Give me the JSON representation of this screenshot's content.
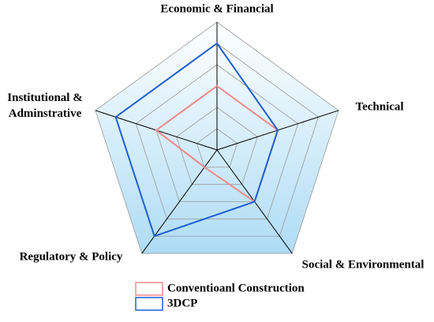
{
  "chart_data": {
    "type": "radar",
    "categories": [
      "Economic & Financial",
      "Technical",
      "Social & Environmental",
      "Regulatory & Policy",
      "Institutional & Adminstrative"
    ],
    "series": [
      {
        "name": "Conventioanl Construction",
        "color": "#f08a8a",
        "values": [
          3,
          3,
          3,
          1,
          3
        ]
      },
      {
        "name": "3DCP",
        "color": "#1f5fd0",
        "values": [
          5,
          3,
          3,
          5,
          5
        ]
      }
    ],
    "ylim": [
      0,
      6
    ],
    "yticks": [
      1,
      2,
      3,
      4,
      5,
      6
    ],
    "grid": true
  }
}
